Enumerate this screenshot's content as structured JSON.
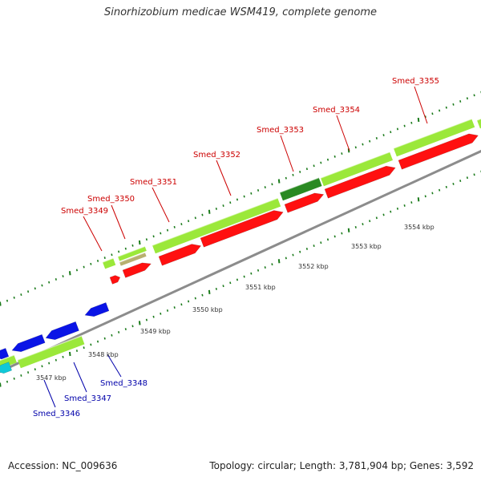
{
  "title": "Sinorhizobium medicae WSM419, complete genome",
  "footer": {
    "accession": "Accession: NC_009636",
    "topology": "Topology: circular; Length: 3,781,904 bp; Genes: 3,592"
  },
  "colors": {
    "top_label": "#cc0000",
    "bottom_label": "#0000aa",
    "gene_green": "#9be83a",
    "gene_darkgreen": "#2a8a22",
    "gene_tan": "#b8b070",
    "cds_red": "#ff1010",
    "cds_blue": "#0a14e6",
    "cds_cyan": "#10c8d8",
    "backbone": "#8c8c8c",
    "tick_green": "#1a7a1a"
  },
  "kbp_labels": [
    "3547 kbp",
    "3548 kbp",
    "3549 kbp",
    "3550 kbp",
    "3551 kbp",
    "3552 kbp",
    "3553 kbp",
    "3554 kbp"
  ],
  "top_genes": [
    "Smed_3349",
    "Smed_3350",
    "Smed_3351",
    "Smed_3352",
    "Smed_3353",
    "Smed_3354",
    "Smed_3355"
  ],
  "bottom_genes": [
    "Smed_3346",
    "Smed_3347",
    "Smed_3348"
  ]
}
